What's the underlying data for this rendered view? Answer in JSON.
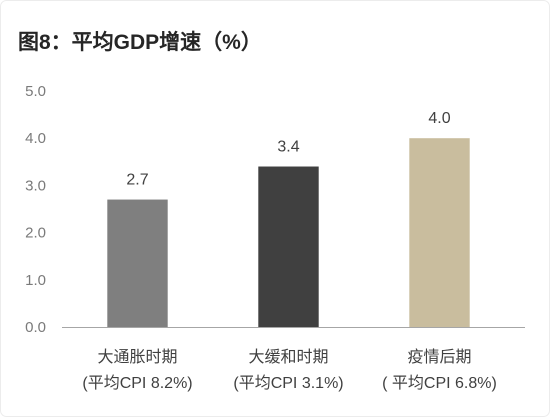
{
  "chart_data": {
    "type": "bar",
    "title": "图8：平均GDP增速（%）",
    "categories": [
      "大通胀时期",
      "大缓和时期",
      "疫情后期"
    ],
    "category_sublabels": [
      "(平均CPI 8.2%)",
      "(平均CPI 3.1%)",
      "( 平均CPI 6.8%)"
    ],
    "values": [
      2.7,
      3.4,
      4.0
    ],
    "data_labels": [
      "2.7",
      "3.4",
      "4.0"
    ],
    "bar_colors": [
      "#7f7f7f",
      "#404040",
      "#c9bd9e"
    ],
    "axis_color": "#a6a6a6",
    "ylim": [
      0,
      5
    ],
    "yticks": [
      {
        "value": 5,
        "label": "5.0"
      },
      {
        "value": 4,
        "label": "4.0"
      },
      {
        "value": 3,
        "label": "3.0"
      },
      {
        "value": 2,
        "label": "2.0"
      },
      {
        "value": 1,
        "label": "1.0"
      },
      {
        "value": 0,
        "label": "0.0"
      }
    ],
    "grid": false
  }
}
